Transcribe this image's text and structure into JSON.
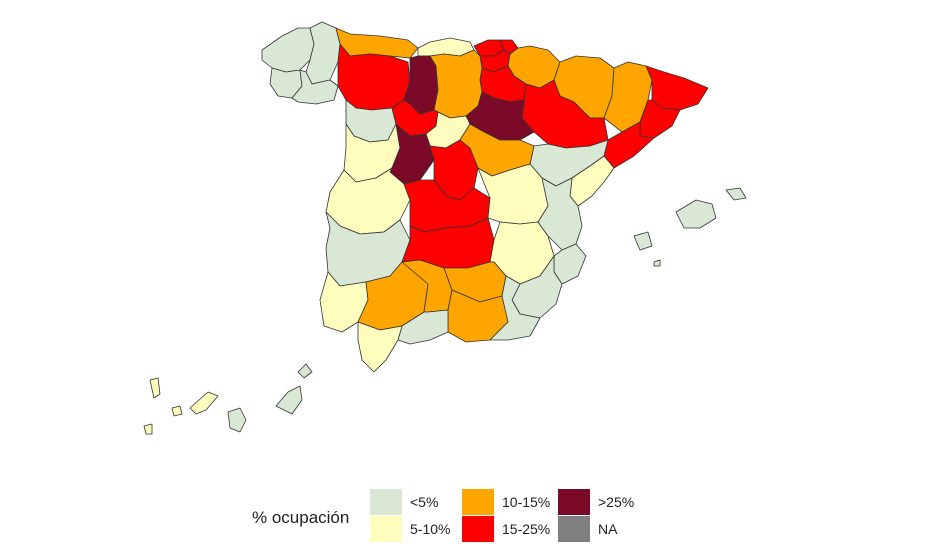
{
  "legend": {
    "title": "% ocupación",
    "items": [
      {
        "label": "<5%",
        "color": "#d8e8d4"
      },
      {
        "label": "5-10%",
        "color": "#fffdbd"
      },
      {
        "label": "10-15%",
        "color": "#ffa500"
      },
      {
        "label": "15-25%",
        "color": "#ff0000"
      },
      {
        "label": ">25%",
        "color": "#7a0a28"
      },
      {
        "label": "NA",
        "color": "#7f7f7f"
      }
    ]
  },
  "regions": [
    {
      "name": "A Coruña",
      "cls": "<5%"
    },
    {
      "name": "Lugo",
      "cls": "<5%"
    },
    {
      "name": "Pontevedra",
      "cls": "<5%"
    },
    {
      "name": "Ourense",
      "cls": "<5%"
    },
    {
      "name": "Asturias",
      "cls": "10-15%"
    },
    {
      "name": "Cantabria",
      "cls": "5-10%"
    },
    {
      "name": "Vizcaya",
      "cls": "15-25%"
    },
    {
      "name": "Guipúzcoa",
      "cls": "15-25%"
    },
    {
      "name": "Álava",
      "cls": "15-25%"
    },
    {
      "name": "Navarra",
      "cls": "10-15%"
    },
    {
      "name": "Huesca",
      "cls": "10-15%"
    },
    {
      "name": "Lleida",
      "cls": "10-15%"
    },
    {
      "name": "Girona",
      "cls": "15-25%"
    },
    {
      "name": "Barcelona",
      "cls": "15-25%"
    },
    {
      "name": "Tarragona",
      "cls": "15-25%"
    },
    {
      "name": "Zaragoza",
      "cls": "15-25%"
    },
    {
      "name": "Teruel",
      "cls": "<5%"
    },
    {
      "name": "La Rioja",
      "cls": "15-25%"
    },
    {
      "name": "León",
      "cls": "15-25%"
    },
    {
      "name": "Palencia",
      "cls": ">25%"
    },
    {
      "name": "Burgos",
      "cls": "10-15%"
    },
    {
      "name": "Soria",
      "cls": ">25%"
    },
    {
      "name": "Zamora",
      "cls": "<5%"
    },
    {
      "name": "Valladolid",
      "cls": "15-25%"
    },
    {
      "name": "Segovia",
      "cls": "5-10%"
    },
    {
      "name": "Salamanca",
      "cls": "5-10%"
    },
    {
      "name": "Ávila",
      "cls": ">25%"
    },
    {
      "name": "Madrid",
      "cls": "15-25%"
    },
    {
      "name": "Guadalajara",
      "cls": "10-15%"
    },
    {
      "name": "Cáceres",
      "cls": "5-10%"
    },
    {
      "name": "Badajoz",
      "cls": "<5%"
    },
    {
      "name": "Toledo",
      "cls": "15-25%"
    },
    {
      "name": "Cuenca",
      "cls": "5-10%"
    },
    {
      "name": "Ciudad Real",
      "cls": "15-25%"
    },
    {
      "name": "Albacete",
      "cls": "5-10%"
    },
    {
      "name": "Castellón",
      "cls": "5-10%"
    },
    {
      "name": "Valencia",
      "cls": "<5%"
    },
    {
      "name": "Alicante",
      "cls": "<5%"
    },
    {
      "name": "Murcia",
      "cls": "<5%"
    },
    {
      "name": "Huelva",
      "cls": "5-10%"
    },
    {
      "name": "Sevilla",
      "cls": "10-15%"
    },
    {
      "name": "Córdoba",
      "cls": "10-15%"
    },
    {
      "name": "Jaén",
      "cls": "10-15%"
    },
    {
      "name": "Granada",
      "cls": "10-15%"
    },
    {
      "name": "Almería",
      "cls": "<5%"
    },
    {
      "name": "Málaga",
      "cls": "<5%"
    },
    {
      "name": "Cádiz",
      "cls": "5-10%"
    },
    {
      "name": "Baleares",
      "cls": "<5%"
    },
    {
      "name": "Las Palmas",
      "cls": "<5%"
    },
    {
      "name": "Santa Cruz de Tenerife",
      "cls": "5-10%"
    }
  ]
}
